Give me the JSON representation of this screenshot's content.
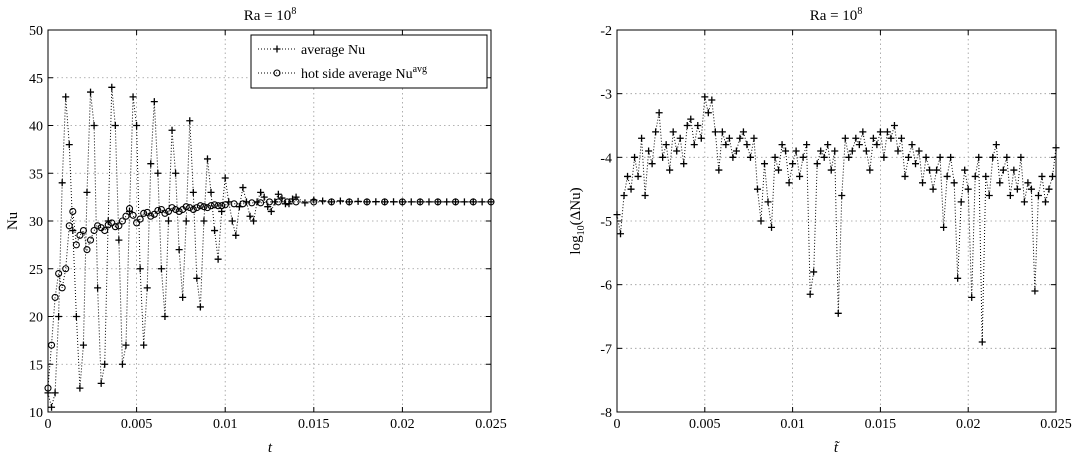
{
  "chart_data": [
    {
      "type": "line",
      "title": "Ra = 10^8",
      "title_main": "Ra = 10",
      "title_sup": "8",
      "xlabel": "t",
      "ylabel": "Nu",
      "xlim": [
        0,
        0.025
      ],
      "ylim": [
        10,
        50
      ],
      "xticks": [
        0,
        0.005,
        0.01,
        0.015,
        0.02,
        0.025
      ],
      "xtick_labels": [
        "0",
        "0.005",
        "0.01",
        "0.015",
        "0.02",
        "0.025"
      ],
      "yticks": [
        10,
        15,
        20,
        25,
        30,
        35,
        40,
        45,
        50
      ],
      "ytick_labels": [
        "10",
        "15",
        "20",
        "25",
        "30",
        "35",
        "40",
        "45",
        "50"
      ],
      "grid": true,
      "legend_position": "top-right",
      "series": [
        {
          "name": "average Nu",
          "marker": "plus",
          "x": [
            0,
            0.0002,
            0.0004,
            0.0006,
            0.0008,
            0.001,
            0.0012,
            0.0014,
            0.0016,
            0.0018,
            0.002,
            0.0022,
            0.0024,
            0.0026,
            0.0028,
            0.003,
            0.0032,
            0.0034,
            0.0036,
            0.0038,
            0.004,
            0.0042,
            0.0044,
            0.0046,
            0.0048,
            0.005,
            0.0052,
            0.0054,
            0.0056,
            0.0058,
            0.006,
            0.0062,
            0.0064,
            0.0066,
            0.0068,
            0.007,
            0.0072,
            0.0074,
            0.0076,
            0.0078,
            0.008,
            0.0082,
            0.0084,
            0.0086,
            0.0088,
            0.009,
            0.0092,
            0.0094,
            0.0096,
            0.0098,
            0.01,
            0.0102,
            0.0104,
            0.0106,
            0.0108,
            0.011,
            0.0112,
            0.0114,
            0.0116,
            0.0118,
            0.012,
            0.0122,
            0.0124,
            0.0126,
            0.0128,
            0.013,
            0.0132,
            0.0134,
            0.0136,
            0.0138,
            0.014,
            0.0145,
            0.015,
            0.0155,
            0.016,
            0.0165,
            0.017,
            0.0175,
            0.018,
            0.0185,
            0.019,
            0.0195,
            0.02,
            0.0205,
            0.021,
            0.0215,
            0.022,
            0.0225,
            0.023,
            0.0235,
            0.024,
            0.0245,
            0.025
          ],
          "y": [
            12,
            10.5,
            12,
            20,
            34,
            43,
            38,
            29,
            20,
            12.5,
            17,
            33,
            43.5,
            40,
            23,
            13,
            15,
            30,
            44,
            40,
            28,
            15,
            17,
            31,
            43,
            40,
            25,
            17,
            23,
            36,
            42.5,
            35,
            25,
            20,
            30,
            39.5,
            35,
            27,
            22,
            30,
            40.5,
            33,
            24,
            21,
            30,
            36.5,
            33,
            29,
            26,
            31,
            34.5,
            32,
            30,
            28.5,
            31.5,
            33.5,
            32,
            30.5,
            30,
            32,
            33,
            32.5,
            31.5,
            31,
            32,
            32.8,
            32.4,
            31.8,
            31.8,
            32.3,
            32.5,
            31.9,
            32.2,
            32.1,
            32,
            32.1,
            32,
            32.05,
            32,
            32.02,
            32,
            32.01,
            32,
            32,
            32,
            32,
            32,
            32,
            32,
            32,
            32,
            32,
            32
          ]
        },
        {
          "name": "hot side average Nu^avg",
          "name_main": "hot side average Nu",
          "name_sup": "avg",
          "marker": "circle",
          "x": [
            0,
            0.0002,
            0.0004,
            0.0006,
            0.0008,
            0.001,
            0.0012,
            0.0014,
            0.0016,
            0.0018,
            0.002,
            0.0022,
            0.0024,
            0.0026,
            0.0028,
            0.003,
            0.0032,
            0.0034,
            0.0036,
            0.0038,
            0.004,
            0.0042,
            0.0044,
            0.0046,
            0.0048,
            0.005,
            0.0052,
            0.0054,
            0.0056,
            0.0058,
            0.006,
            0.0062,
            0.0064,
            0.0066,
            0.0068,
            0.007,
            0.0072,
            0.0074,
            0.0076,
            0.0078,
            0.008,
            0.0082,
            0.0084,
            0.0086,
            0.0088,
            0.009,
            0.0092,
            0.0094,
            0.0096,
            0.0098,
            0.01,
            0.0105,
            0.011,
            0.0115,
            0.012,
            0.0125,
            0.013,
            0.0135,
            0.014,
            0.015,
            0.016,
            0.017,
            0.018,
            0.019,
            0.02,
            0.021,
            0.022,
            0.023,
            0.024,
            0.025
          ],
          "y": [
            12.5,
            17,
            22,
            24.5,
            23,
            25,
            29.5,
            31,
            27.5,
            28.5,
            29,
            27,
            28,
            29,
            29.5,
            29.3,
            29,
            29.6,
            29.8,
            29.4,
            29.5,
            30,
            30.5,
            31.3,
            30.6,
            29.8,
            30.2,
            30.8,
            30.9,
            30.5,
            30.7,
            31.1,
            31.2,
            30.8,
            31,
            31.4,
            31.2,
            31,
            31.2,
            31.5,
            31.4,
            31.2,
            31.4,
            31.6,
            31.5,
            31.4,
            31.6,
            31.7,
            31.6,
            31.6,
            31.7,
            31.8,
            31.8,
            31.9,
            31.9,
            32,
            32,
            32,
            32,
            32,
            32,
            32,
            32,
            32,
            32,
            32,
            32,
            32,
            32,
            32
          ]
        }
      ]
    },
    {
      "type": "line",
      "title": "Ra = 10^8",
      "title_main": "Ra = 10",
      "title_sup": "8",
      "xlabel": "t̃",
      "ylabel": "log10(ΔNu)",
      "ylabel_main": "log",
      "ylabel_sub": "10",
      "ylabel_rest": "(ΔNu)",
      "xlim": [
        0,
        0.025
      ],
      "ylim": [
        -8,
        -2
      ],
      "xticks": [
        0,
        0.005,
        0.01,
        0.015,
        0.02,
        0.025
      ],
      "xtick_labels": [
        "0",
        "0.005",
        "0.01",
        "0.015",
        "0.02",
        "0.025"
      ],
      "yticks": [
        -8,
        -7,
        -6,
        -5,
        -4,
        -3,
        -2
      ],
      "ytick_labels": [
        "-8",
        "-7",
        "-6",
        "-5",
        "-4",
        "-3",
        "-2"
      ],
      "grid": true,
      "series": [
        {
          "marker": "plus",
          "x": [
            0,
            0.0002,
            0.0004,
            0.0006,
            0.0008,
            0.001,
            0.0012,
            0.0014,
            0.0016,
            0.0018,
            0.002,
            0.0022,
            0.0024,
            0.0026,
            0.0028,
            0.003,
            0.0032,
            0.0034,
            0.0036,
            0.0038,
            0.004,
            0.0042,
            0.0044,
            0.0046,
            0.0048,
            0.005,
            0.0052,
            0.0054,
            0.0056,
            0.0058,
            0.006,
            0.0062,
            0.0064,
            0.0066,
            0.0068,
            0.007,
            0.0072,
            0.0074,
            0.0076,
            0.0078,
            0.008,
            0.0082,
            0.0084,
            0.0086,
            0.0088,
            0.009,
            0.0092,
            0.0094,
            0.0096,
            0.0098,
            0.01,
            0.0102,
            0.0104,
            0.0106,
            0.0108,
            0.011,
            0.0112,
            0.0114,
            0.0116,
            0.0118,
            0.012,
            0.0122,
            0.0124,
            0.0126,
            0.0128,
            0.013,
            0.0132,
            0.0134,
            0.0136,
            0.0138,
            0.014,
            0.0142,
            0.0144,
            0.0146,
            0.0148,
            0.015,
            0.0152,
            0.0154,
            0.0156,
            0.0158,
            0.016,
            0.0162,
            0.0164,
            0.0166,
            0.0168,
            0.017,
            0.0172,
            0.0174,
            0.0176,
            0.0178,
            0.018,
            0.0182,
            0.0184,
            0.0186,
            0.0188,
            0.019,
            0.0192,
            0.0194,
            0.0196,
            0.0198,
            0.02,
            0.0202,
            0.0204,
            0.0206,
            0.0208,
            0.021,
            0.0212,
            0.0214,
            0.0216,
            0.0218,
            0.022,
            0.0222,
            0.0224,
            0.0226,
            0.0228,
            0.023,
            0.0232,
            0.0234,
            0.0236,
            0.0238,
            0.024,
            0.0242,
            0.0244,
            0.0246,
            0.0248,
            0.025
          ],
          "y": [
            -4.9,
            -5.2,
            -4.6,
            -4.3,
            -4.5,
            -4.0,
            -4.3,
            -3.7,
            -4.6,
            -3.9,
            -4.1,
            -3.6,
            -3.3,
            -4.0,
            -3.8,
            -4.2,
            -3.6,
            -3.9,
            -3.7,
            -4.1,
            -3.5,
            -3.4,
            -3.8,
            -3.5,
            -3.7,
            -3.05,
            -3.3,
            -3.1,
            -3.6,
            -4.2,
            -3.6,
            -3.8,
            -3.7,
            -4.0,
            -3.9,
            -3.7,
            -3.6,
            -3.8,
            -4.0,
            -3.7,
            -4.5,
            -5.0,
            -4.1,
            -4.7,
            -5.1,
            -4.0,
            -4.2,
            -3.8,
            -3.9,
            -4.4,
            -4.1,
            -3.9,
            -4.3,
            -4.0,
            -3.8,
            -6.15,
            -5.8,
            -4.1,
            -3.9,
            -4.0,
            -3.8,
            -4.2,
            -3.9,
            -6.45,
            -4.6,
            -3.7,
            -4.0,
            -3.9,
            -3.7,
            -3.8,
            -3.6,
            -3.9,
            -4.2,
            -3.7,
            -3.8,
            -3.6,
            -4.0,
            -3.6,
            -3.7,
            -3.5,
            -3.9,
            -3.7,
            -4.3,
            -4.0,
            -3.8,
            -4.1,
            -3.9,
            -4.4,
            -4.0,
            -4.2,
            -4.5,
            -4.2,
            -4.0,
            -5.1,
            -4.3,
            -4.0,
            -4.4,
            -5.9,
            -4.7,
            -4.2,
            -4.5,
            -6.2,
            -4.3,
            -4.0,
            -6.9,
            -4.3,
            -4.6,
            -4.0,
            -3.8,
            -4.4,
            -4.2,
            -4.0,
            -4.6,
            -4.2,
            -4.5,
            -4.0,
            -4.7,
            -4.4,
            -4.5,
            -6.1,
            -4.6,
            -4.3,
            -4.7,
            -4.5,
            -4.3,
            -3.85
          ]
        }
      ]
    }
  ]
}
